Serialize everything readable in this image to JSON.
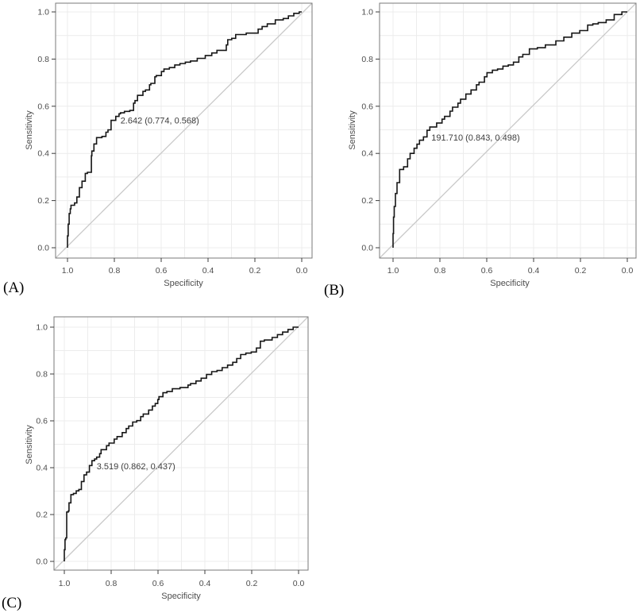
{
  "colors": {
    "background": "#ffffff",
    "curve": "#161616",
    "diagonal_line": "#c9c9c9",
    "gridline": "#ececec",
    "panel_border": "#7a7a7a",
    "tick_mark": "#3c3c3c",
    "tick_text": "#4d4d4d",
    "axis_title_text": "#4d4d4d",
    "annotation_text": "#3d3d3d",
    "panel_label_text": "#000000"
  },
  "chart_data": [
    {
      "type": "line",
      "subtype": "roc-step-curve",
      "panel_label": "(A)",
      "xlabel": "Specificity",
      "ylabel": "Sensitivity",
      "x_ticks": [
        "1.0",
        "0.8",
        "0.6",
        "0.4",
        "0.2",
        "0.0"
      ],
      "y_ticks": [
        "0.0",
        "0.2",
        "0.4",
        "0.6",
        "0.8",
        "1.0"
      ],
      "x_axis_reversed": true,
      "xlim": [
        1.0,
        0.0
      ],
      "ylim": [
        0.0,
        1.0
      ],
      "grid": "minor gridlines every 0.1, on",
      "diagonal_reference_line": true,
      "legend": "none",
      "annotation": {
        "text": "2.642 (0.774, 0.568)",
        "threshold": 2.642,
        "specificity": 0.774,
        "sensitivity": 0.568
      },
      "series": [
        {
          "name": "ROC curve A",
          "points_spec_sens": [
            [
              1.0,
              0.0
            ],
            [
              0.997,
              0.05
            ],
            [
              0.993,
              0.1
            ],
            [
              0.988,
              0.145
            ],
            [
              0.985,
              0.165
            ],
            [
              0.97,
              0.18
            ],
            [
              0.96,
              0.19
            ],
            [
              0.949,
              0.215
            ],
            [
              0.938,
              0.255
            ],
            [
              0.924,
              0.282
            ],
            [
              0.915,
              0.315
            ],
            [
              0.898,
              0.32
            ],
            [
              0.896,
              0.39
            ],
            [
              0.887,
              0.41
            ],
            [
              0.876,
              0.44
            ],
            [
              0.853,
              0.467
            ],
            [
              0.836,
              0.472
            ],
            [
              0.827,
              0.49
            ],
            [
              0.814,
              0.5
            ],
            [
              0.794,
              0.54
            ],
            [
              0.78,
              0.557
            ],
            [
              0.774,
              0.568
            ],
            [
              0.757,
              0.572
            ],
            [
              0.734,
              0.578
            ],
            [
              0.718,
              0.582
            ],
            [
              0.712,
              0.613
            ],
            [
              0.701,
              0.624
            ],
            [
              0.678,
              0.646
            ],
            [
              0.667,
              0.663
            ],
            [
              0.65,
              0.669
            ],
            [
              0.644,
              0.691
            ],
            [
              0.627,
              0.697
            ],
            [
              0.621,
              0.725
            ],
            [
              0.599,
              0.73
            ],
            [
              0.588,
              0.747
            ],
            [
              0.565,
              0.758
            ],
            [
              0.542,
              0.764
            ],
            [
              0.52,
              0.775
            ],
            [
              0.497,
              0.781
            ],
            [
              0.475,
              0.787
            ],
            [
              0.446,
              0.792
            ],
            [
              0.412,
              0.803
            ],
            [
              0.384,
              0.815
            ],
            [
              0.362,
              0.826
            ],
            [
              0.322,
              0.837
            ],
            [
              0.316,
              0.86
            ],
            [
              0.299,
              0.882
            ],
            [
              0.282,
              0.888
            ],
            [
              0.237,
              0.904
            ],
            [
              0.186,
              0.91
            ],
            [
              0.169,
              0.927
            ],
            [
              0.147,
              0.938
            ],
            [
              0.113,
              0.949
            ],
            [
              0.079,
              0.966
            ],
            [
              0.057,
              0.972
            ],
            [
              0.034,
              0.983
            ],
            [
              0.011,
              0.994
            ],
            [
              0.0,
              1.0
            ]
          ]
        }
      ]
    },
    {
      "type": "line",
      "subtype": "roc-step-curve",
      "panel_label": "(B)",
      "xlabel": "Specificity",
      "ylabel": "Sensitivity",
      "x_ticks": [
        "1.0",
        "0.8",
        "0.6",
        "0.4",
        "0.2",
        "0.0"
      ],
      "y_ticks": [
        "0.0",
        "0.2",
        "0.4",
        "0.6",
        "0.8",
        "1.0"
      ],
      "x_axis_reversed": true,
      "xlim": [
        1.0,
        0.0
      ],
      "ylim": [
        0.0,
        1.0
      ],
      "grid": "minor gridlines every 0.1, on",
      "diagonal_reference_line": true,
      "legend": "none",
      "annotation": {
        "text": "191.710 (0.843, 0.498)",
        "threshold": 191.71,
        "specificity": 0.843,
        "sensitivity": 0.498
      },
      "series": [
        {
          "name": "ROC curve B",
          "points_spec_sens": [
            [
              1.0,
              0.0
            ],
            [
              0.998,
              0.06
            ],
            [
              0.995,
              0.13
            ],
            [
              0.99,
              0.175
            ],
            [
              0.983,
              0.23
            ],
            [
              0.972,
              0.276
            ],
            [
              0.955,
              0.332
            ],
            [
              0.938,
              0.343
            ],
            [
              0.927,
              0.377
            ],
            [
              0.91,
              0.4
            ],
            [
              0.898,
              0.422
            ],
            [
              0.887,
              0.439
            ],
            [
              0.87,
              0.456
            ],
            [
              0.855,
              0.47
            ],
            [
              0.843,
              0.498
            ],
            [
              0.814,
              0.512
            ],
            [
              0.791,
              0.529
            ],
            [
              0.78,
              0.545
            ],
            [
              0.757,
              0.557
            ],
            [
              0.746,
              0.579
            ],
            [
              0.723,
              0.596
            ],
            [
              0.712,
              0.613
            ],
            [
              0.689,
              0.63
            ],
            [
              0.667,
              0.652
            ],
            [
              0.644,
              0.669
            ],
            [
              0.633,
              0.691
            ],
            [
              0.61,
              0.702
            ],
            [
              0.599,
              0.725
            ],
            [
              0.576,
              0.742
            ],
            [
              0.554,
              0.753
            ],
            [
              0.531,
              0.758
            ],
            [
              0.508,
              0.77
            ],
            [
              0.486,
              0.775
            ],
            [
              0.463,
              0.787
            ],
            [
              0.446,
              0.809
            ],
            [
              0.418,
              0.82
            ],
            [
              0.384,
              0.843
            ],
            [
              0.35,
              0.848
            ],
            [
              0.305,
              0.86
            ],
            [
              0.271,
              0.877
            ],
            [
              0.237,
              0.893
            ],
            [
              0.203,
              0.91
            ],
            [
              0.169,
              0.921
            ],
            [
              0.147,
              0.944
            ],
            [
              0.124,
              0.949
            ],
            [
              0.09,
              0.955
            ],
            [
              0.056,
              0.966
            ],
            [
              0.023,
              0.989
            ],
            [
              0.0,
              1.0
            ]
          ]
        }
      ]
    },
    {
      "type": "line",
      "subtype": "roc-step-curve",
      "panel_label": "(C)",
      "xlabel": "Specificity",
      "ylabel": "Sensitivity",
      "x_ticks": [
        "1.0",
        "0.8",
        "0.6",
        "0.4",
        "0.2",
        "0.0"
      ],
      "y_ticks": [
        "0.0",
        "0.2",
        "0.4",
        "0.6",
        "0.8",
        "1.0"
      ],
      "x_axis_reversed": true,
      "xlim": [
        1.0,
        0.0
      ],
      "ylim": [
        0.0,
        1.0
      ],
      "grid": "minor gridlines every 0.1, on",
      "diagonal_reference_line": true,
      "legend": "none",
      "annotation": {
        "text": "3.519 (0.862, 0.437)",
        "threshold": 3.519,
        "specificity": 0.862,
        "sensitivity": 0.437
      },
      "series": [
        {
          "name": "ROC curve C",
          "points_spec_sens": [
            [
              1.0,
              0.0
            ],
            [
              0.997,
              0.05
            ],
            [
              0.994,
              0.093
            ],
            [
              0.99,
              0.1
            ],
            [
              0.983,
              0.211
            ],
            [
              0.98,
              0.215
            ],
            [
              0.972,
              0.25
            ],
            [
              0.961,
              0.285
            ],
            [
              0.949,
              0.29
            ],
            [
              0.938,
              0.301
            ],
            [
              0.927,
              0.307
            ],
            [
              0.916,
              0.341
            ],
            [
              0.905,
              0.369
            ],
            [
              0.893,
              0.381
            ],
            [
              0.882,
              0.409
            ],
            [
              0.871,
              0.43
            ],
            [
              0.862,
              0.437
            ],
            [
              0.849,
              0.445
            ],
            [
              0.843,
              0.46
            ],
            [
              0.82,
              0.477
            ],
            [
              0.809,
              0.494
            ],
            [
              0.787,
              0.505
            ],
            [
              0.775,
              0.522
            ],
            [
              0.753,
              0.533
            ],
            [
              0.736,
              0.55
            ],
            [
              0.725,
              0.567
            ],
            [
              0.708,
              0.578
            ],
            [
              0.691,
              0.595
            ],
            [
              0.674,
              0.601
            ],
            [
              0.663,
              0.618
            ],
            [
              0.64,
              0.629
            ],
            [
              0.624,
              0.646
            ],
            [
              0.612,
              0.663
            ],
            [
              0.601,
              0.674
            ],
            [
              0.596,
              0.691
            ],
            [
              0.579,
              0.703
            ],
            [
              0.562,
              0.72
            ],
            [
              0.539,
              0.725
            ],
            [
              0.506,
              0.737
            ],
            [
              0.472,
              0.742
            ],
            [
              0.461,
              0.753
            ],
            [
              0.438,
              0.759
            ],
            [
              0.416,
              0.77
            ],
            [
              0.393,
              0.782
            ],
            [
              0.371,
              0.798
            ],
            [
              0.348,
              0.81
            ],
            [
              0.326,
              0.815
            ],
            [
              0.303,
              0.827
            ],
            [
              0.281,
              0.838
            ],
            [
              0.264,
              0.85
            ],
            [
              0.247,
              0.866
            ],
            [
              0.225,
              0.883
            ],
            [
              0.202,
              0.889
            ],
            [
              0.18,
              0.894
            ],
            [
              0.163,
              0.911
            ],
            [
              0.146,
              0.94
            ],
            [
              0.113,
              0.945
            ],
            [
              0.09,
              0.956
            ],
            [
              0.068,
              0.968
            ],
            [
              0.045,
              0.979
            ],
            [
              0.023,
              0.99
            ],
            [
              0.0,
              1.0
            ]
          ]
        }
      ]
    }
  ]
}
